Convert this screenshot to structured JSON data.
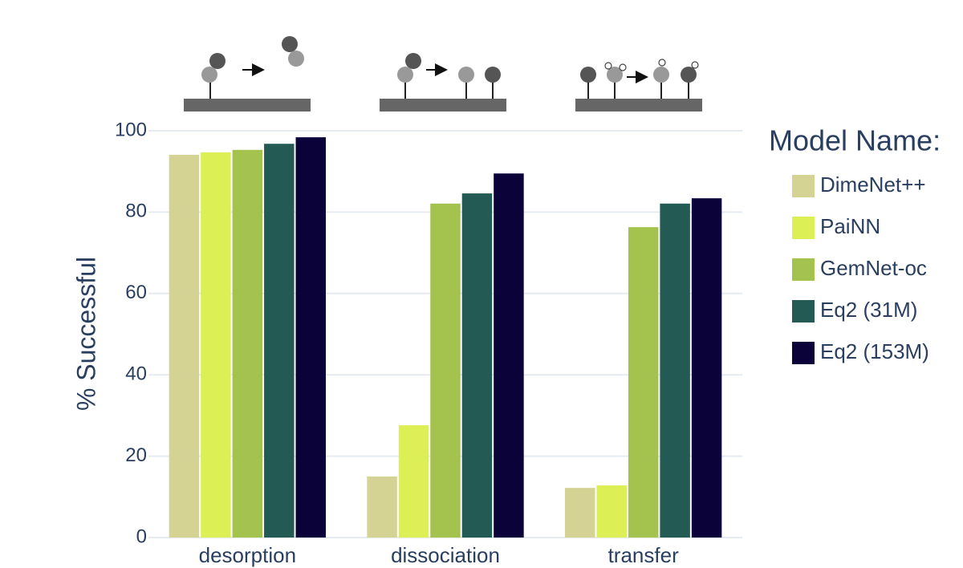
{
  "chart_data": {
    "type": "bar",
    "y_label": "% Successful",
    "legend_title": "Model Name:",
    "legend": "right",
    "grid": true,
    "categories": [
      "desorption",
      "dissociation",
      "transfer"
    ],
    "series": [
      {
        "name": "DimeNet++",
        "color": "#d5d394",
        "values": [
          94.1,
          15.0,
          12.2
        ]
      },
      {
        "name": "PaiNN",
        "color": "#dcef55",
        "values": [
          94.7,
          27.6,
          12.8
        ]
      },
      {
        "name": "GemNet-oc",
        "color": "#a4c24e",
        "values": [
          95.3,
          82.1,
          76.3
        ]
      },
      {
        "name": "Eq2 (31M)",
        "color": "#235b54",
        "values": [
          96.8,
          84.6,
          82.1
        ]
      },
      {
        "name": "Eq2 (153M)",
        "color": "#0a0239",
        "values": [
          98.4,
          89.5,
          83.4
        ]
      }
    ],
    "ylim": [
      0,
      100
    ],
    "yticks": [
      0,
      20,
      40,
      60,
      80,
      100
    ]
  }
}
